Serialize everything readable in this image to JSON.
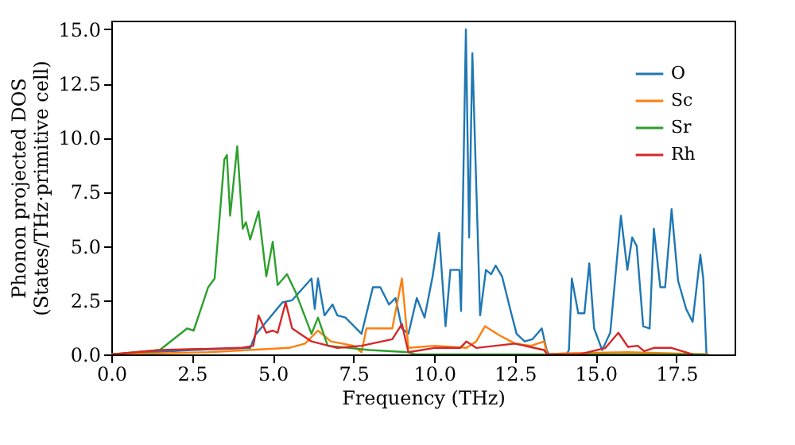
{
  "chart_data": {
    "type": "line",
    "xlabel": "Frequency (THz)",
    "ylabel": "Phonon projected DOS\n(States/THz·primitive cell)",
    "xlim": [
      0,
      19.3
    ],
    "ylim": [
      0,
      15.4
    ],
    "xticks": [
      {
        "value": 0,
        "label": "0.0"
      },
      2.5,
      {
        "value": 5,
        "label": "5.0"
      },
      7.5,
      {
        "value": 10,
        "label": "10.0"
      },
      12.5,
      {
        "value": 15,
        "label": "15.0"
      },
      17.5
    ],
    "yticks": [
      {
        "value": 0,
        "label": "0.0"
      },
      2.5,
      {
        "value": 5,
        "label": "5.0"
      },
      7.5,
      {
        "value": 10,
        "label": "10.0"
      },
      12.5,
      {
        "value": 15,
        "label": "15.0"
      }
    ],
    "legend": "top right",
    "grid": false,
    "line_style": "solid",
    "marker": "none",
    "series": [
      {
        "name": "O",
        "color": "#1f77b4",
        "x": [
          0,
          2.5,
          4.3,
          4.46,
          5.3,
          5.6,
          6.2,
          6.3,
          6.4,
          6.6,
          6.85,
          7.0,
          7.25,
          7.75,
          8.1,
          8.33,
          8.6,
          8.8,
          9.0,
          9.2,
          9.46,
          9.7,
          9.95,
          10.15,
          10.35,
          10.5,
          10.78,
          10.83,
          10.98,
          11.08,
          11.18,
          11.42,
          11.6,
          11.76,
          11.9,
          12.1,
          12.35,
          12.55,
          12.8,
          13.04,
          13.33,
          13.48,
          13.55,
          14.1,
          14.17,
          14.26,
          14.46,
          14.65,
          14.8,
          14.95,
          15.2,
          15.45,
          15.78,
          15.98,
          16.13,
          16.27,
          16.47,
          16.67,
          16.8,
          17.0,
          17.15,
          17.35,
          17.55,
          17.8,
          18.0,
          18.24,
          18.33,
          18.43
        ],
        "values": [
          0,
          0.2,
          0.3,
          0.9,
          2.4,
          2.5,
          3.5,
          2.1,
          3.5,
          1.8,
          2.3,
          1.8,
          1.7,
          0.95,
          3.1,
          3.1,
          2.3,
          2.6,
          1.2,
          0.95,
          2.6,
          1.7,
          3.6,
          5.6,
          1.3,
          3.9,
          3.9,
          2.0,
          15.0,
          5.4,
          13.9,
          1.8,
          3.9,
          3.7,
          4.1,
          3.6,
          2.1,
          0.95,
          0.6,
          0.7,
          1.2,
          0.2,
          0,
          0,
          0.2,
          3.5,
          1.9,
          1.9,
          4.2,
          1.2,
          0.2,
          1.0,
          6.4,
          3.9,
          5.4,
          5.0,
          1.3,
          1.2,
          5.8,
          3.1,
          3.1,
          6.7,
          3.4,
          2.1,
          1.5,
          4.6,
          3.5,
          0
        ]
      },
      {
        "name": "Sc",
        "color": "#ff7f0e",
        "x": [
          0,
          3.0,
          5.5,
          6.0,
          6.4,
          6.8,
          7.5,
          7.75,
          7.9,
          8.3,
          8.7,
          9.0,
          9.2,
          10.0,
          11.0,
          11.3,
          11.57,
          12.0,
          12.5,
          13.0,
          13.4,
          13.5,
          14.0,
          16.0,
          18.5
        ],
        "values": [
          0,
          0.1,
          0.3,
          0.5,
          1.1,
          0.6,
          0.4,
          0.1,
          1.2,
          1.2,
          1.2,
          3.5,
          0.3,
          0.4,
          0.3,
          0.6,
          1.3,
          0.9,
          0.5,
          0.4,
          0.6,
          0,
          0.05,
          0.1,
          0
        ]
      },
      {
        "name": "Sr",
        "color": "#2ca02c",
        "x": [
          0,
          1.5,
          2.35,
          2.55,
          3.0,
          3.2,
          3.5,
          3.58,
          3.68,
          3.9,
          4.07,
          4.17,
          4.3,
          4.56,
          4.8,
          5.0,
          5.15,
          5.44,
          5.7,
          6.2,
          6.4,
          6.7,
          8.0,
          9.2,
          9.4,
          18.4
        ],
        "values": [
          0,
          0.2,
          1.2,
          1.1,
          3.1,
          3.5,
          9.0,
          9.2,
          6.4,
          9.6,
          5.8,
          6.1,
          5.3,
          6.6,
          3.6,
          5.2,
          3.2,
          3.7,
          2.9,
          0.95,
          1.7,
          0.4,
          0.2,
          0.1,
          0,
          0
        ]
      },
      {
        "name": "Rh",
        "color": "#d62728",
        "x": [
          0,
          1.5,
          4.0,
          4.4,
          4.56,
          4.8,
          5.0,
          5.15,
          5.4,
          5.6,
          6.2,
          7.0,
          7.75,
          8.7,
          9.0,
          9.2,
          10.0,
          10.8,
          11.0,
          11.3,
          12.5,
          13.4,
          13.5,
          14.5,
          15.3,
          15.7,
          16.0,
          16.3,
          16.5,
          16.8,
          17.35,
          18.0
        ],
        "values": [
          0,
          0.2,
          0.3,
          0.4,
          1.8,
          1.0,
          1.1,
          1.0,
          2.4,
          1.2,
          0.6,
          0.3,
          0.4,
          0.7,
          1.4,
          0.1,
          0.3,
          0.3,
          0.6,
          0.3,
          0.5,
          0.2,
          0,
          0,
          0.3,
          1.0,
          0.35,
          0.4,
          0.15,
          0.3,
          0.3,
          0
        ]
      }
    ]
  }
}
